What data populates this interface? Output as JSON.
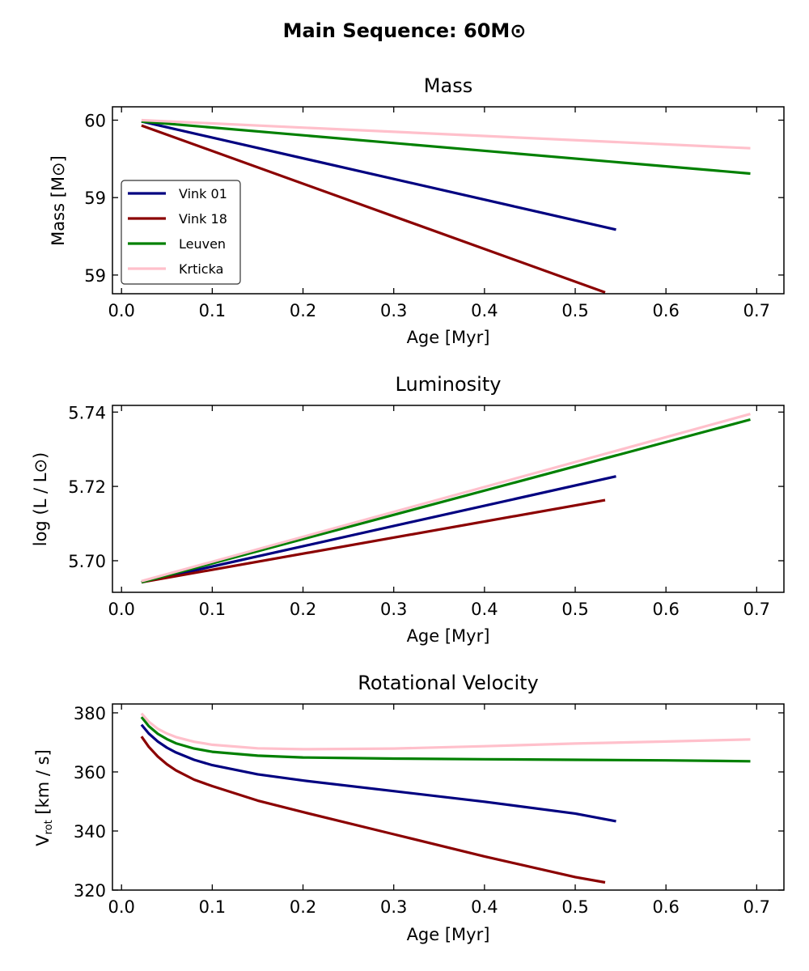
{
  "figure": {
    "title": "Main Sequence: 60M⊙"
  },
  "colors": {
    "Vink 01": "#000080",
    "Vink 18": "#8b0000",
    "Leuven": "#008000",
    "Krticka": "#ffc0cb"
  },
  "chart_data": [
    {
      "type": "line",
      "title": "Mass",
      "xlabel": "Age [Myr]",
      "ylabel": "Mass [M⊙]",
      "xlim": [
        -0.01,
        0.73
      ],
      "ylim": [
        58.7,
        60.1
      ],
      "xticks": [
        0.0,
        0.1,
        0.2,
        0.3,
        0.4,
        0.5,
        0.6,
        0.7
      ],
      "xtick_labels": [
        "0.0",
        "0.1",
        "0.2",
        "0.3",
        "0.4",
        "0.5",
        "0.6",
        "0.7"
      ],
      "yticks": [
        60.0,
        59.42,
        58.84
      ],
      "ytick_labels": [
        "60",
        "59",
        "59"
      ],
      "legend": "center-left",
      "series": [
        {
          "name": "Vink 01",
          "x": [
            0.022,
            0.545
          ],
          "y": [
            59.99,
            59.18
          ]
        },
        {
          "name": "Vink 18",
          "x": [
            0.022,
            0.533
          ],
          "y": [
            59.96,
            58.71
          ]
        },
        {
          "name": "Leuven",
          "x": [
            0.022,
            0.693
          ],
          "y": [
            59.99,
            59.6
          ]
        },
        {
          "name": "Krticka",
          "x": [
            0.022,
            0.693
          ],
          "y": [
            60.0,
            59.79
          ]
        }
      ]
    },
    {
      "type": "line",
      "title": "Luminosity",
      "xlabel": "Age [Myr]",
      "ylabel": "log (L / L⊙)",
      "xlim": [
        -0.01,
        0.73
      ],
      "ylim": [
        5.6915,
        5.7418
      ],
      "xticks": [
        0.0,
        0.1,
        0.2,
        0.3,
        0.4,
        0.5,
        0.6,
        0.7
      ],
      "xtick_labels": [
        "0.0",
        "0.1",
        "0.2",
        "0.3",
        "0.4",
        "0.5",
        "0.6",
        "0.7"
      ],
      "yticks": [
        5.7,
        5.72,
        5.74
      ],
      "ytick_labels": [
        "5.70",
        "5.72",
        "5.74"
      ],
      "series": [
        {
          "name": "Vink 01",
          "x": [
            0.022,
            0.545
          ],
          "y": [
            5.6942,
            5.7227
          ]
        },
        {
          "name": "Vink 18",
          "x": [
            0.022,
            0.533
          ],
          "y": [
            5.6942,
            5.7163
          ]
        },
        {
          "name": "Leuven",
          "x": [
            0.022,
            0.693
          ],
          "y": [
            5.6942,
            5.738
          ]
        },
        {
          "name": "Krticka",
          "x": [
            0.022,
            0.693
          ],
          "y": [
            5.6945,
            5.7395
          ]
        }
      ]
    },
    {
      "type": "line",
      "title": "Rotational Velocity",
      "xlabel": "Age [Myr]",
      "ylabel": "V_rot [km / s]",
      "xlim": [
        -0.01,
        0.73
      ],
      "ylim": [
        320,
        383
      ],
      "xticks": [
        0.0,
        0.1,
        0.2,
        0.3,
        0.4,
        0.5,
        0.6,
        0.7
      ],
      "xtick_labels": [
        "0.0",
        "0.1",
        "0.2",
        "0.3",
        "0.4",
        "0.5",
        "0.6",
        "0.7"
      ],
      "yticks": [
        320,
        340,
        360,
        380
      ],
      "ytick_labels": [
        "320",
        "340",
        "360",
        "380"
      ],
      "series": [
        {
          "name": "Vink 01",
          "x": [
            0.022,
            0.03,
            0.04,
            0.05,
            0.06,
            0.08,
            0.1,
            0.15,
            0.2,
            0.3,
            0.4,
            0.5,
            0.545
          ],
          "y": [
            376.0,
            373.0,
            370.3,
            368.2,
            366.6,
            364.1,
            362.3,
            359.2,
            357.1,
            353.5,
            349.9,
            345.9,
            343.3
          ]
        },
        {
          "name": "Vink 18",
          "x": [
            0.022,
            0.03,
            0.04,
            0.05,
            0.06,
            0.08,
            0.1,
            0.15,
            0.2,
            0.3,
            0.4,
            0.5,
            0.533
          ],
          "y": [
            372.0,
            368.5,
            365.2,
            362.6,
            360.5,
            357.4,
            355.2,
            350.3,
            346.4,
            338.9,
            331.4,
            324.4,
            322.6
          ]
        },
        {
          "name": "Leuven",
          "x": [
            0.022,
            0.03,
            0.04,
            0.05,
            0.06,
            0.08,
            0.1,
            0.15,
            0.2,
            0.3,
            0.4,
            0.5,
            0.6,
            0.693
          ],
          "y": [
            378.6,
            375.5,
            372.9,
            371.1,
            369.7,
            367.9,
            366.8,
            365.5,
            364.9,
            364.5,
            364.3,
            364.1,
            363.9,
            363.6
          ]
        },
        {
          "name": "Krticka",
          "x": [
            0.022,
            0.03,
            0.04,
            0.05,
            0.06,
            0.08,
            0.1,
            0.15,
            0.2,
            0.3,
            0.4,
            0.5,
            0.6,
            0.693
          ],
          "y": [
            379.8,
            377.0,
            374.6,
            373.0,
            371.8,
            370.2,
            369.2,
            368.0,
            367.7,
            367.9,
            368.7,
            369.6,
            370.3,
            371.0
          ]
        }
      ]
    }
  ]
}
